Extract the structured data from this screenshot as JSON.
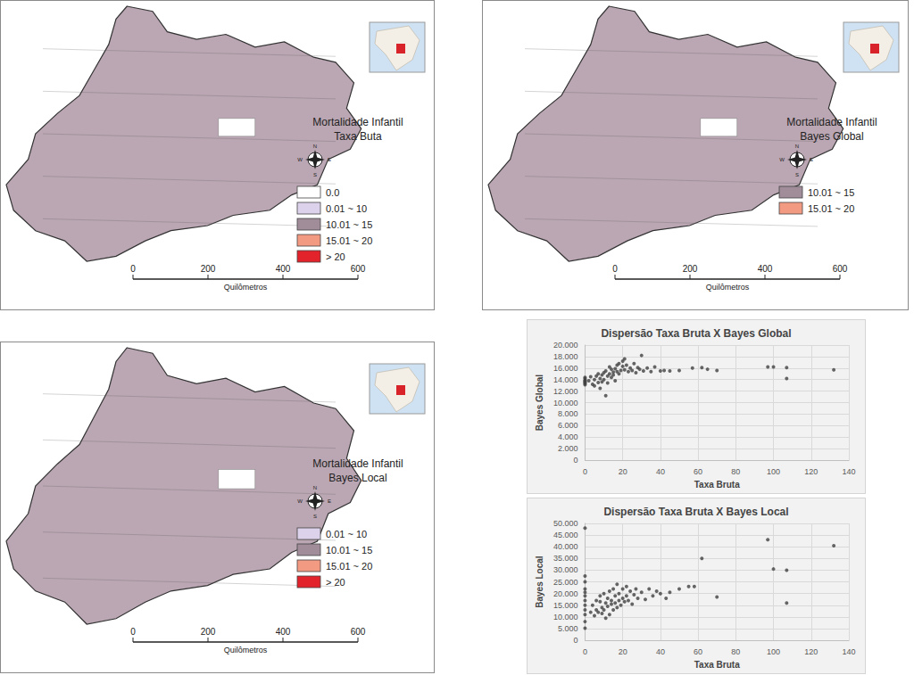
{
  "maps": [
    {
      "title": [
        "Mortalidade Infantil",
        "Taxa Buta"
      ],
      "legend": [
        {
          "label": "0.0",
          "color": "#ffffff"
        },
        {
          "label": "0.01 ~ 10",
          "color": "#dcd2ec"
        },
        {
          "label": "10.01 ~ 15",
          "color": "#a18d99"
        },
        {
          "label": "15.01 ~ 20",
          "color": "#f29a82"
        },
        {
          "label": "> 20",
          "color": "#e3232b"
        }
      ],
      "scale": {
        "ticks": [
          0,
          200,
          400,
          600
        ],
        "unit": "Quilômetros"
      },
      "compass": {
        "N": "N",
        "S": "S",
        "E": "E",
        "W": "W"
      }
    },
    {
      "title": [
        "Mortalidade Infantil",
        "Bayes Global"
      ],
      "legend": [
        {
          "label": "10.01 ~ 15",
          "color": "#a18d99"
        },
        {
          "label": "15.01 ~ 20",
          "color": "#f29a82"
        }
      ],
      "scale": {
        "ticks": [
          0,
          200,
          400,
          600
        ],
        "unit": "Quilômetros"
      },
      "compass": {
        "N": "N",
        "S": "S",
        "E": "E",
        "W": "W"
      }
    },
    {
      "title": [
        "Mortalidade Infantil",
        "Bayes Local"
      ],
      "legend": [
        {
          "label": "0.01 ~ 10",
          "color": "#dcd2ec"
        },
        {
          "label": "10.01 ~ 15",
          "color": "#a18d99"
        },
        {
          "label": "15.01 ~ 20",
          "color": "#f29a82"
        },
        {
          "label": "> 20",
          "color": "#e3232b"
        }
      ],
      "scale": {
        "ticks": [
          0,
          200,
          400,
          600
        ],
        "unit": "Quilômetros"
      },
      "compass": {
        "N": "N",
        "S": "S",
        "E": "E",
        "W": "W"
      }
    }
  ],
  "chart_data": [
    {
      "type": "scatter",
      "title": "Dispersão Taxa Bruta X Bayes Global",
      "x_label": "Taxa Bruta",
      "y_label": "Bayes Global",
      "color": "#404040",
      "marker": "circle",
      "grid": true,
      "x": [
        0,
        0,
        0,
        0,
        0,
        0,
        0,
        0,
        2,
        3,
        4,
        5,
        5,
        6,
        7,
        7,
        8,
        8,
        9,
        9,
        10,
        10,
        11,
        11,
        12,
        12,
        13,
        13,
        14,
        14,
        15,
        15,
        16,
        16,
        17,
        17,
        18,
        18,
        19,
        20,
        20,
        21,
        21,
        22,
        23,
        24,
        25,
        26,
        27,
        28,
        29,
        30,
        31,
        33,
        35,
        37,
        40,
        42,
        45,
        50,
        57,
        62,
        65,
        70,
        97,
        100,
        107,
        107,
        132
      ],
      "values": [
        13.3,
        13.6,
        13.9,
        14.2,
        13.5,
        14.4,
        13.8,
        13.1,
        13.8,
        14.5,
        13.2,
        14.0,
        12.9,
        14.6,
        13.5,
        15.0,
        14.2,
        12.5,
        14.8,
        13.6,
        15.2,
        14.0,
        11.2,
        15.5,
        14.6,
        13.4,
        15.0,
        16.2,
        14.4,
        15.8,
        15.3,
        14.8,
        15.9,
        13.8,
        15.4,
        16.5,
        15.0,
        16.8,
        15.6,
        16.3,
        17.2,
        15.7,
        17.6,
        16.5,
        15.4,
        16.0,
        15.6,
        16.8,
        15.2,
        16.1,
        15.8,
        18.2,
        15.5,
        16.0,
        15.4,
        16.2,
        15.5,
        15.6,
        15.5,
        15.6,
        16.0,
        16.1,
        15.8,
        15.6,
        16.2,
        16.2,
        16.1,
        14.2,
        15.7
      ],
      "xlim": [
        0,
        140
      ],
      "xticks": [
        0,
        20,
        40,
        60,
        80,
        100,
        120,
        140
      ],
      "ylim": [
        0,
        20
      ],
      "yticks": [
        0,
        {
          "value": 2,
          "label": "2.000"
        },
        {
          "value": 4,
          "label": "4.000"
        },
        {
          "value": 6,
          "label": "6.000"
        },
        {
          "value": 8,
          "label": "8.000"
        },
        {
          "value": 10,
          "label": "10.000"
        },
        {
          "value": 12,
          "label": "12.000"
        },
        {
          "value": 14,
          "label": "14.000"
        },
        {
          "value": 16,
          "label": "16.000"
        },
        {
          "value": 18,
          "label": "18.000"
        },
        {
          "value": 20,
          "label": "20.000"
        }
      ]
    },
    {
      "type": "scatter",
      "title": "Dispersão Taxa Bruta X Bayes Local",
      "x_label": "Taxa Bruta",
      "y_label": "Bayes Local",
      "color": "#404040",
      "marker": "circle",
      "grid": true,
      "x": [
        0,
        0,
        0,
        0,
        0,
        0,
        0,
        0,
        0,
        0,
        0,
        0,
        3,
        4,
        5,
        6,
        6,
        7,
        8,
        8,
        9,
        9,
        10,
        10,
        11,
        11,
        12,
        12,
        13,
        13,
        14,
        14,
        15,
        15,
        16,
        16,
        17,
        17,
        18,
        18,
        19,
        20,
        20,
        21,
        22,
        22,
        23,
        24,
        25,
        26,
        27,
        28,
        30,
        32,
        34,
        36,
        38,
        40,
        43,
        45,
        50,
        55,
        58,
        62,
        70,
        97,
        100,
        107,
        107,
        132
      ],
      "values": [
        5.2,
        8,
        11,
        13,
        15,
        17,
        19,
        20.5,
        22,
        25,
        27.5,
        48,
        12,
        15,
        10.5,
        17,
        13,
        12,
        16.5,
        19,
        11.5,
        14,
        20,
        13,
        16,
        9.5,
        18,
        14.5,
        11,
        21,
        15.5,
        17,
        13,
        22,
        16,
        19,
        14,
        24,
        17,
        20,
        15,
        22,
        18,
        16.5,
        19,
        23,
        17,
        21,
        15.5,
        19.5,
        22,
        18,
        20.5,
        17.5,
        22,
        19,
        21,
        20,
        18,
        20.5,
        22,
        23,
        23,
        35,
        18.5,
        43,
        30.5,
        30,
        16,
        40.5
      ],
      "xlim": [
        0,
        140
      ],
      "xticks": [
        0,
        20,
        40,
        60,
        80,
        100,
        120,
        140
      ],
      "ylim": [
        0,
        50
      ],
      "yticks": [
        0,
        {
          "value": 5,
          "label": "5.000"
        },
        {
          "value": 10,
          "label": "10.000"
        },
        {
          "value": 15,
          "label": "15.000"
        },
        {
          "value": 20,
          "label": "20.000"
        },
        {
          "value": 25,
          "label": "25.000"
        },
        {
          "value": 30,
          "label": "30.000"
        },
        {
          "value": 35,
          "label": "35.000"
        },
        {
          "value": 40,
          "label": "40.000"
        },
        {
          "value": 45,
          "label": "45.000"
        },
        {
          "value": 50,
          "label": "50.000"
        }
      ]
    }
  ]
}
